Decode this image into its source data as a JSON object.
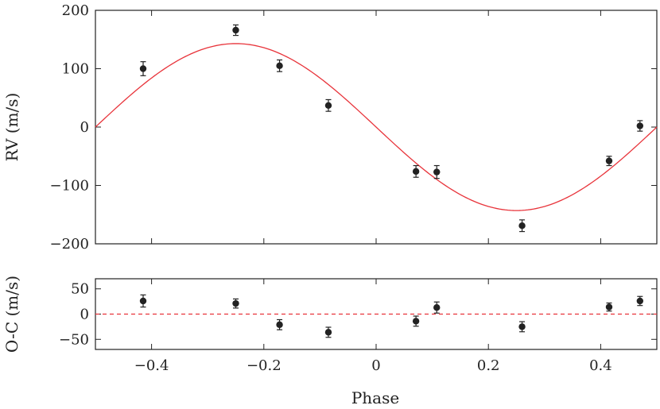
{
  "chart_data": [
    {
      "type": "scatter",
      "panel": "rv",
      "ylabel": "RV (m/s)",
      "xlim": [
        -0.5,
        0.5
      ],
      "ylim": [
        -200,
        200
      ],
      "yticks": [
        -200,
        -100,
        0,
        100,
        200
      ],
      "ytick_labels": [
        "−200",
        "−100",
        "0",
        "100",
        "200"
      ],
      "model_curve": {
        "type": "sine",
        "amplitude": 143,
        "color": "#e8333a"
      },
      "point_color": "#222222",
      "series": [
        {
          "x": [
            -0.415,
            -0.25,
            -0.172,
            -0.085,
            0.071,
            0.108,
            0.26,
            0.415,
            0.47
          ],
          "y": [
            100,
            166,
            105,
            37,
            -76,
            -77,
            -169,
            -58,
            2
          ],
          "yerr": [
            12,
            9,
            10,
            10,
            10,
            11,
            10,
            8,
            9
          ]
        }
      ]
    },
    {
      "type": "scatter",
      "panel": "residuals",
      "xlabel": "Phase",
      "ylabel": "O-C (m/s)",
      "xlim": [
        -0.5,
        0.5
      ],
      "ylim": [
        -70,
        70
      ],
      "xticks": [
        -0.4,
        -0.2,
        0,
        0.2,
        0.4
      ],
      "xtick_labels": [
        "−0.4",
        "−0.2",
        "0",
        "0.2",
        "0.4"
      ],
      "yticks": [
        -50,
        0,
        50
      ],
      "ytick_labels": [
        "−50",
        "0",
        "50"
      ],
      "zero_line": {
        "y": 0,
        "style": "dashed",
        "color": "#e8333a"
      },
      "point_color": "#222222",
      "series": [
        {
          "x": [
            -0.415,
            -0.25,
            -0.172,
            -0.085,
            0.071,
            0.108,
            0.26,
            0.415,
            0.47
          ],
          "y": [
            26,
            21,
            -21,
            -36,
            -14,
            13,
            -25,
            14,
            26
          ],
          "yerr": [
            12,
            9,
            10,
            10,
            10,
            11,
            10,
            8,
            9
          ]
        }
      ]
    }
  ]
}
